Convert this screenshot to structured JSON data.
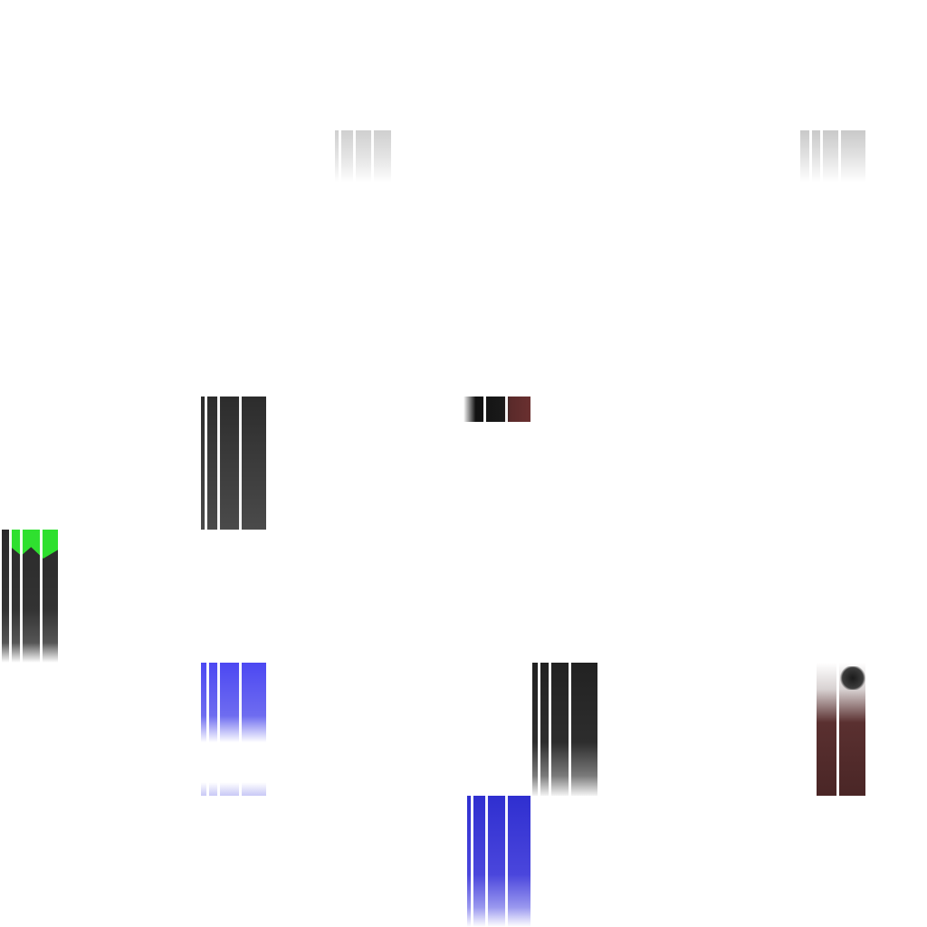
{
  "canvas": {
    "background": "#ffffff"
  },
  "tiles": [
    {
      "name": "light-gray-fragment",
      "color": "#d8d8d8"
    },
    {
      "name": "light-gray-fragment",
      "color": "#d2d2d2"
    },
    {
      "name": "dark-gray-fragment",
      "color": "#333333"
    },
    {
      "name": "dark-red-fragment",
      "color": "#5a2a2a"
    },
    {
      "name": "green-dark-fragment",
      "color": "#2fe02f"
    },
    {
      "name": "blue-fragment",
      "color": "#4c48f2"
    },
    {
      "name": "dark-gray-fragment",
      "color": "#2d2d2d"
    },
    {
      "name": "brown-fragment",
      "color": "#4a2626"
    },
    {
      "name": "blue-fragment",
      "color": "#2f2fd0"
    }
  ]
}
